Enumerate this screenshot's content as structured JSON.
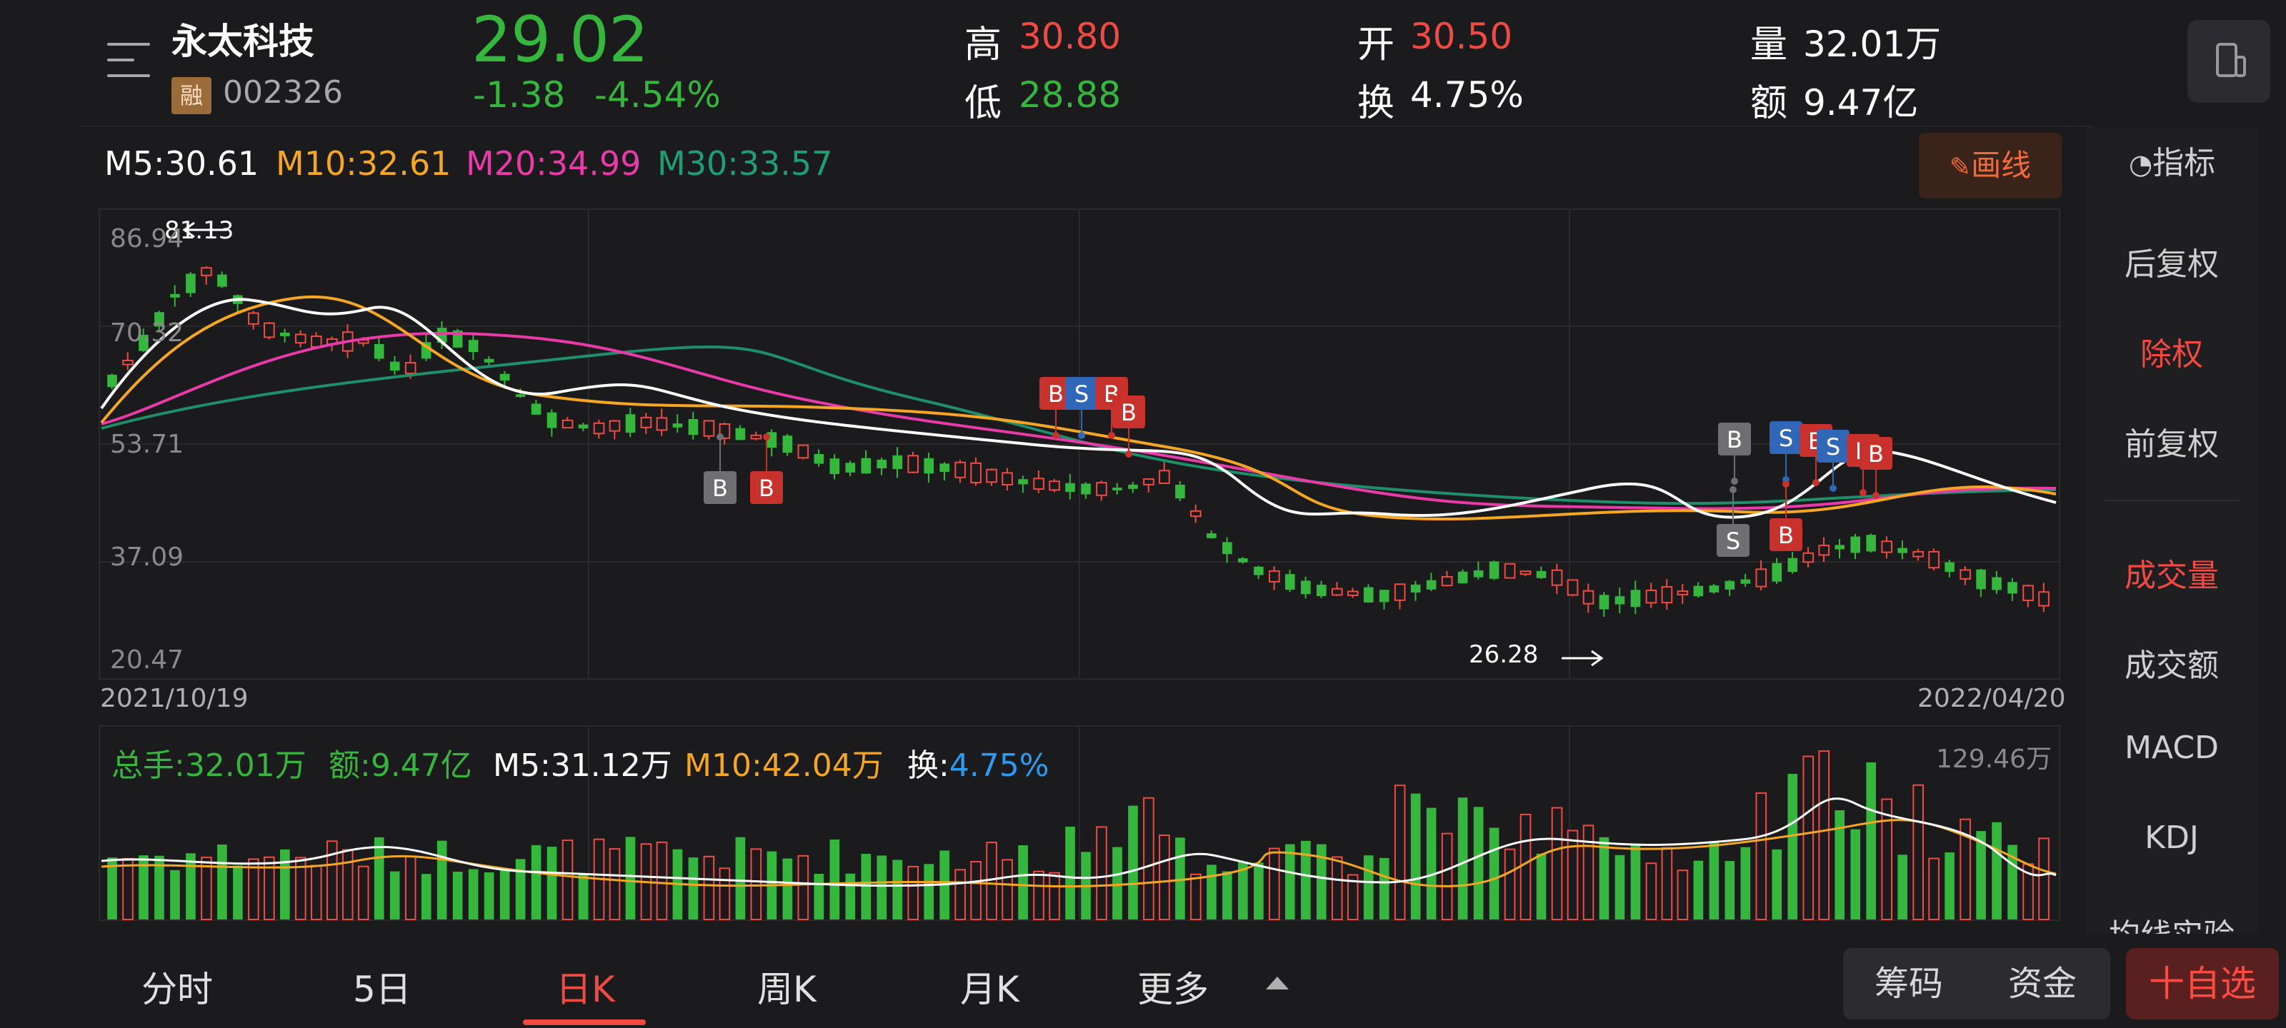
{
  "header": {
    "menu_icon": "menu-list-icon",
    "stock_name": "永太科技",
    "margin_badge": "融",
    "stock_code": "002326",
    "price": "29.02",
    "change": "-1.38",
    "change_pct": "-4.54%",
    "high_label": "高",
    "high_value": "30.80",
    "low_label": "低",
    "low_value": "28.88",
    "open_label": "开",
    "open_value": "30.50",
    "turnover_label": "换",
    "turnover_value": "4.75%",
    "volume_label": "量",
    "volume_value": "32.01万",
    "amount_label": "额",
    "amount_value": "9.47亿",
    "device_icon": "phone-landscape-icon"
  },
  "ma_legend": {
    "m5": "M5:30.61",
    "m10": "M10:32.61",
    "m20": "M20:34.99",
    "m30": "M30:33.57"
  },
  "draw_button": {
    "label": "画线",
    "icon": "pencil-icon"
  },
  "chart": {
    "y_ticks": [
      "86.94",
      "70.32",
      "53.71",
      "37.09",
      "20.47"
    ],
    "start_date": "2021/10/19",
    "end_date": "2022/04/20",
    "max_marker": "81.13",
    "min_marker": "26.28",
    "signal_b": "B",
    "signal_s": "S"
  },
  "volume": {
    "total_label": "总手:32.01万",
    "amount_label": "额:9.47亿",
    "m5_label": "M5:31.12万",
    "m10_label": "M10:42.04万",
    "turnover_prefix": "换:",
    "turnover_value": "4.75%",
    "max_tick": "129.46万"
  },
  "side_panel": {
    "indicator_label": "指标",
    "indicator_icon": "gauge-icon",
    "items": [
      "后复权",
      "除权",
      "前复权",
      "成交量",
      "成交额",
      "MACD",
      "KDJ",
      "均线实验"
    ]
  },
  "bottom_tabs": [
    "分时",
    "5日",
    "日K",
    "周K",
    "月K",
    "更多"
  ],
  "bottom_buttons": {
    "chips": "筹码",
    "funds": "资金",
    "add_watch": "十自选"
  },
  "colors": {
    "up": "#f24a43",
    "down": "#35b63d",
    "m5": "#ffffff",
    "m10": "#f5a623",
    "m20": "#e83aa8",
    "m30": "#1f8e6a",
    "background": "#1b1b1e"
  },
  "chart_data": {
    "type": "candlestick",
    "x_start": "2021/10/19",
    "x_end": "2022/04/20",
    "ylim": [
      20.47,
      86.94
    ],
    "y_ticks": [
      86.94,
      70.32,
      53.71,
      37.09,
      20.47
    ],
    "period_high": 81.13,
    "period_low": 26.28,
    "last_close": 29.02,
    "ma": {
      "M5": 30.61,
      "M10": 32.61,
      "M20": 34.99,
      "M30": 33.57
    },
    "volume_max": "129.46万",
    "volume_last": "32.01万",
    "volume_ma": {
      "M5": "31.12万",
      "M10": "42.04万"
    }
  }
}
